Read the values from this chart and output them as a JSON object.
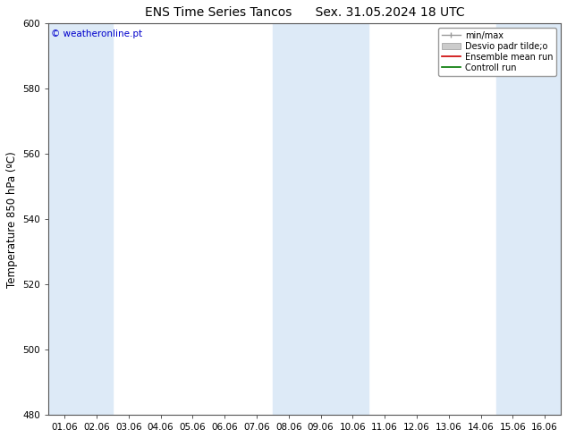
{
  "title": "ENS Time Series Tancos      Sex. 31.05.2024 18 UTC",
  "ylabel": "Temperature 850 hPa (ºC)",
  "ylim": [
    480,
    600
  ],
  "yticks": [
    480,
    500,
    520,
    540,
    560,
    580,
    600
  ],
  "x_tick_labels": [
    "01.06",
    "02.06",
    "03.06",
    "04.06",
    "05.06",
    "06.06",
    "07.06",
    "08.06",
    "09.06",
    "10.06",
    "11.06",
    "12.06",
    "13.06",
    "14.06",
    "15.06",
    "16.06"
  ],
  "shaded_indices": [
    0,
    1,
    7,
    8,
    9,
    14,
    15
  ],
  "shade_color": "#ddeaf7",
  "background_color": "#ffffff",
  "legend_labels": [
    "min/max",
    "Desvio padr tilde;o",
    "Ensemble mean run",
    "Controll run"
  ],
  "legend_line_colors": [
    "#999999",
    "#bbbbbb",
    "#cc0000",
    "#007700"
  ],
  "watermark": "© weatheronline.pt",
  "watermark_color": "#0000cc",
  "title_fontsize": 10,
  "tick_fontsize": 7.5,
  "ylabel_fontsize": 8.5,
  "legend_fontsize": 7
}
